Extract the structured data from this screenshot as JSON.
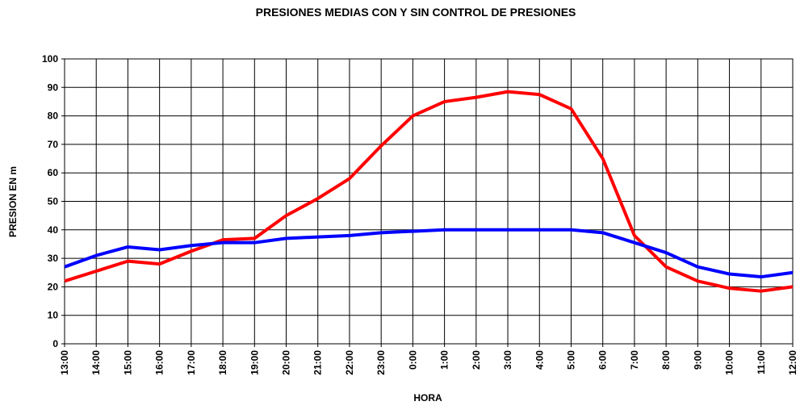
{
  "chart_data": {
    "type": "line",
    "title": "PRESIONES MEDIAS CON Y SIN CONTROL DE PRESIONES",
    "x_label": "HORA",
    "y_label": "PRESION EN m",
    "categories": [
      "13:00",
      "14:00",
      "15:00",
      "16:00",
      "17:00",
      "18:00",
      "19:00",
      "20:00",
      "21:00",
      "22:00",
      "23:00",
      "0:00",
      "1:00",
      "2:00",
      "3:00",
      "4:00",
      "5:00",
      "6:00",
      "7:00",
      "8:00",
      "9:00",
      "10:00",
      "11:00",
      "12:00"
    ],
    "series": [
      {
        "color": "#ff0000",
        "values": [
          22,
          25.5,
          29,
          28,
          32.5,
          36.5,
          37,
          45,
          51,
          58,
          69.5,
          80,
          85,
          86.5,
          88.5,
          87.5,
          82.5,
          65,
          38,
          27,
          22,
          19.5,
          18.5,
          20
        ]
      },
      {
        "color": "#0000ff",
        "values": [
          27,
          31,
          34,
          33,
          34.5,
          35.5,
          35.5,
          37,
          37.5,
          38,
          39,
          39.5,
          40,
          40,
          40,
          40,
          40,
          39,
          35.5,
          32,
          27,
          24.5,
          23.5,
          25
        ]
      }
    ],
    "ylim": [
      0,
      100
    ],
    "yticks": [
      0,
      10,
      20,
      30,
      40,
      50,
      60,
      70,
      80,
      90,
      100
    ],
    "grid": true
  }
}
